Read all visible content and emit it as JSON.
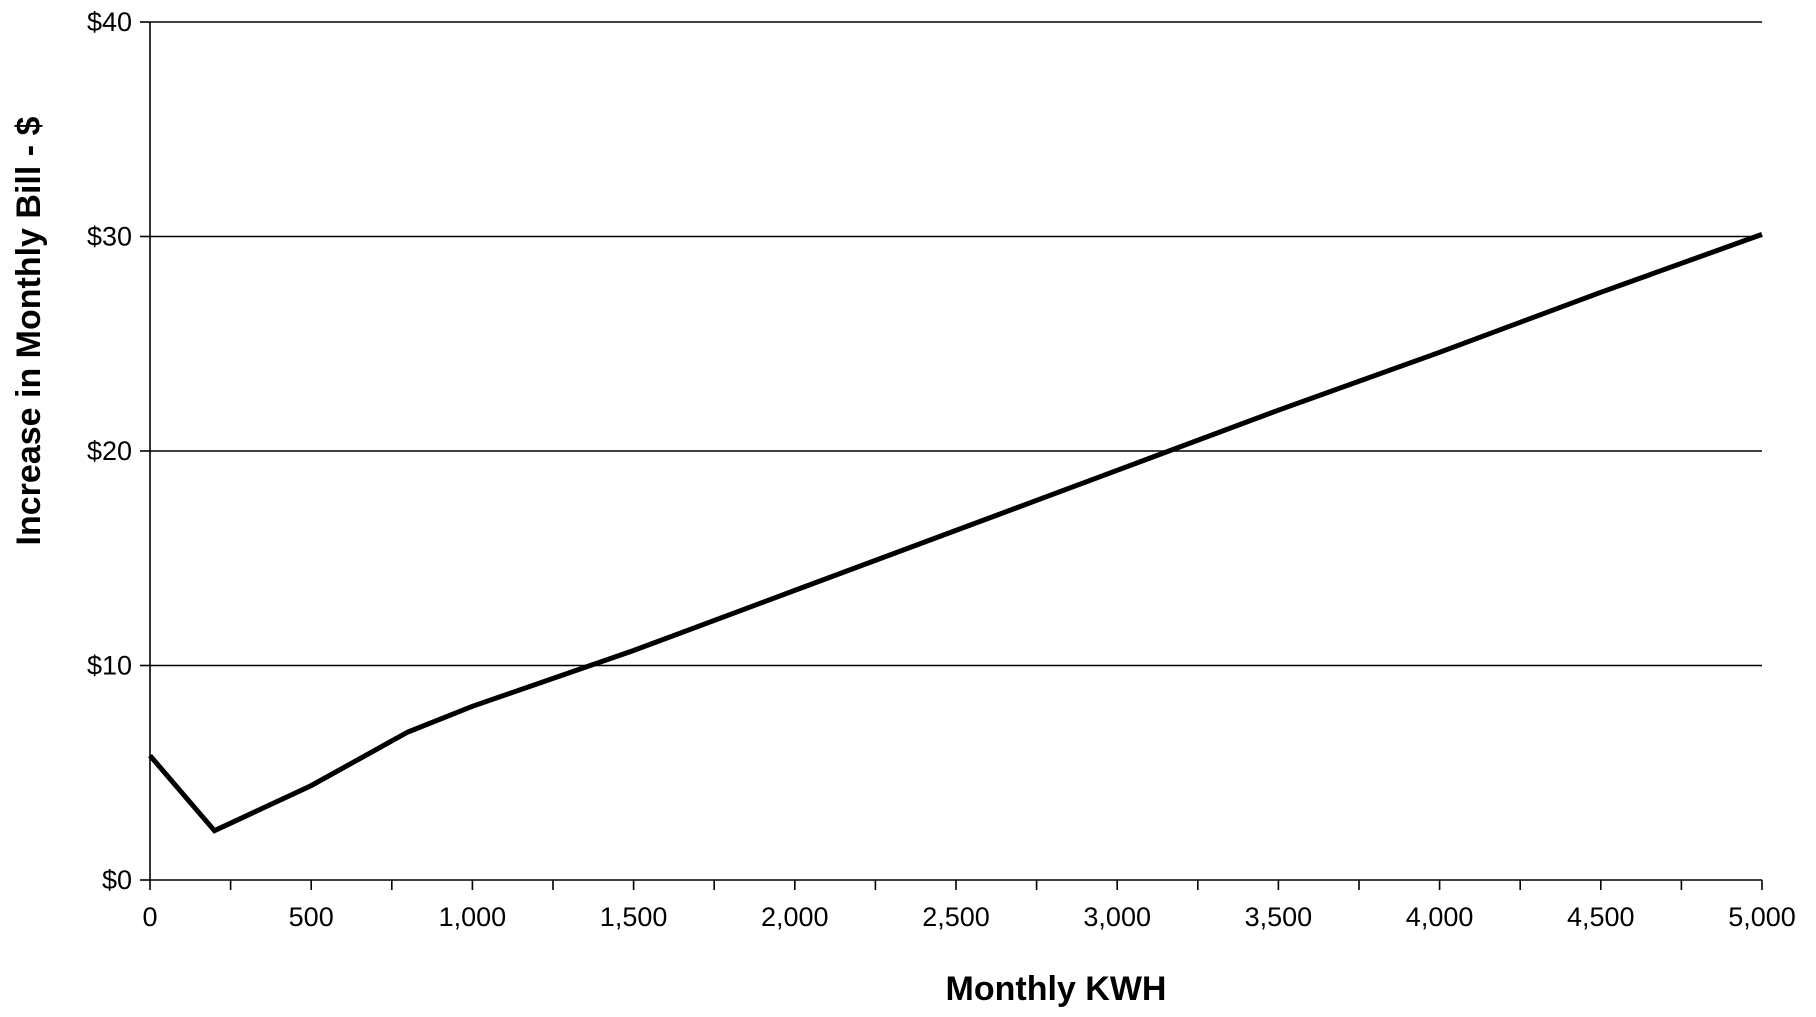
{
  "chart_data": {
    "type": "line",
    "title": "",
    "xlabel": "Monthly KWH",
    "ylabel": "Increase in Monthly Bill - $",
    "xlim": [
      0,
      5000
    ],
    "ylim": [
      0,
      40
    ],
    "grid": true,
    "legend": "none",
    "x_ticks": [
      {
        "value": 0,
        "label": "0"
      },
      {
        "value": 500,
        "label": "500"
      },
      {
        "value": 1000,
        "label": "1,000"
      },
      {
        "value": 1500,
        "label": "1,500"
      },
      {
        "value": 2000,
        "label": "2,000"
      },
      {
        "value": 2500,
        "label": "2,500"
      },
      {
        "value": 3000,
        "label": "3,000"
      },
      {
        "value": 3500,
        "label": "3,500"
      },
      {
        "value": 4000,
        "label": "4,000"
      },
      {
        "value": 4500,
        "label": "4,500"
      },
      {
        "value": 5000,
        "label": "5,000"
      }
    ],
    "y_ticks": [
      {
        "value": 0,
        "label": "$0"
      },
      {
        "value": 10,
        "label": "$10"
      },
      {
        "value": 20,
        "label": "$20"
      },
      {
        "value": 30,
        "label": "$30"
      },
      {
        "value": 40,
        "label": "$40"
      }
    ],
    "series": [
      {
        "color": "#000000",
        "x": [
          0,
          200,
          500,
          800,
          1000,
          1500,
          2000,
          2500,
          3000,
          3500,
          4000,
          4500,
          5000
        ],
        "y": [
          5.8,
          2.3,
          4.4,
          6.9,
          8.1,
          10.7,
          13.5,
          16.3,
          19.1,
          21.9,
          24.6,
          27.4,
          30.1
        ]
      }
    ]
  }
}
